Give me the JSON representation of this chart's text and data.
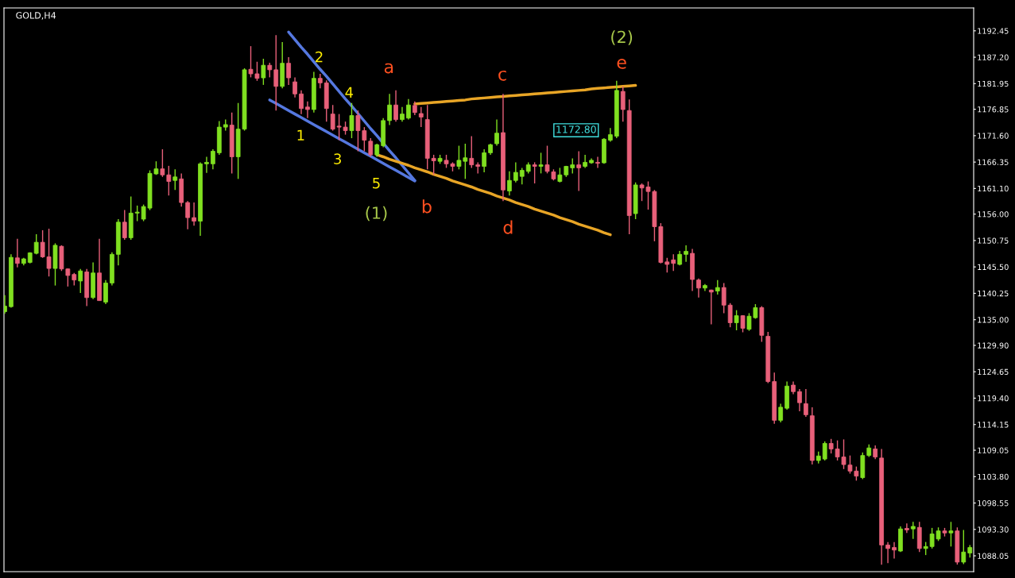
{
  "chart_data": {
    "type": "candlestick",
    "title": "GOLD,H4",
    "categories": [
      null,
      null,
      null,
      null,
      null,
      null,
      null,
      null,
      null,
      null,
      null,
      null,
      null,
      null,
      null,
      null,
      null,
      null,
      null,
      null,
      null,
      null,
      null,
      null,
      null,
      null,
      null,
      null,
      null,
      null,
      null,
      null,
      null,
      null,
      null,
      null,
      null,
      null,
      null,
      null,
      null,
      null,
      null,
      null,
      null,
      null,
      null,
      null,
      null,
      null,
      null,
      null,
      null,
      null,
      null,
      null,
      null,
      null,
      null,
      null,
      null,
      null,
      null,
      null,
      null,
      null,
      null,
      null,
      null,
      null,
      null,
      null,
      null,
      null,
      null,
      null,
      null,
      null,
      null,
      null,
      null,
      null,
      null,
      null,
      null,
      null,
      null,
      null,
      null,
      null,
      null,
      null,
      null,
      null,
      null,
      null,
      null,
      null,
      null,
      null,
      null,
      null,
      null,
      null,
      null,
      null,
      null,
      null,
      null,
      null,
      null,
      null,
      null,
      null,
      null,
      null,
      null,
      null,
      null,
      null,
      null,
      null,
      null,
      null,
      null,
      null,
      null,
      null,
      null,
      null,
      null,
      null,
      null,
      null,
      null,
      null,
      null,
      null,
      null,
      null,
      null,
      null,
      null,
      null,
      null,
      null,
      null,
      null,
      null,
      null,
      null,
      null,
      null,
      null
    ],
    "series": [
      {
        "colors": [
          "#80e020",
          "#80e020",
          "#e8607a",
          "#80e020",
          "#80e020",
          "#80e020",
          "#e8607a",
          "#e8607a",
          "#80e020",
          "#e8607a",
          "#e8607a",
          "#e8607a",
          "#80e020",
          "#e8607a",
          "#80e020",
          "#e8607a",
          "#80e020",
          "#80e020",
          "#80e020",
          "#e8607a",
          "#80e020",
          "#80e020",
          "#80e020",
          "#80e020",
          "#80e020",
          "#e8607a",
          "#e8607a",
          "#80e020",
          "#e8607a",
          "#e8607a",
          "#e8607a",
          "#80e020",
          "#80e020",
          "#80e020",
          "#80e020",
          "#80e020",
          "#e8607a",
          "#80e020",
          "#80e020",
          "#e8607a",
          "#e8607a",
          "#80e020",
          "#e8607a",
          "#e8607a",
          "#80e020",
          "#e8607a",
          "#e8607a",
          "#e8607a",
          "#e8607a",
          "#80e020",
          "#e8607a",
          "#e8607a",
          "#e8607a",
          "#e8607a",
          "#e8607a",
          "#80e020",
          "#e8607a",
          "#e8607a",
          "#e8607a",
          "#80e020",
          "#80e020",
          "#80e020",
          "#e8607a",
          "#80e020",
          "#80e020",
          "#e8607a",
          "#e8607a",
          "#e8607a",
          "#e8607a",
          "#80e020",
          "#e8607a",
          "#e8607a",
          "#80e020",
          "#80e020",
          "#e8607a",
          "#e8607a",
          "#80e020",
          "#80e020",
          "#80e020",
          "#e8607a",
          "#80e020",
          "#80e020",
          "#80e020",
          "#80e020",
          "#e8607a",
          "#80e020",
          "#e8607a",
          "#e8607a",
          "#80e020",
          "#80e020",
          "#80e020",
          "#e8607a",
          "#80e020",
          "#80e020",
          "#e8607a",
          "#80e020",
          "#80e020",
          "#80e020",
          "#e8607a",
          "#e8607a",
          "#80e020",
          "#e8607a",
          "#e8607a",
          "#e8607a",
          "#e8607a",
          "#e8607a",
          "#e8607a",
          "#80e020",
          "#80e020",
          "#e8607a",
          "#e8607a",
          "#80e020",
          "#e8607a",
          "#80e020",
          "#e8607a",
          "#e8607a",
          "#80e020",
          "#e8607a",
          "#80e020",
          "#80e020",
          "#e8607a",
          "#e8607a",
          "#e8607a",
          "#80e020",
          "#80e020",
          "#e8607a",
          "#e8607a",
          "#e8607a",
          "#e8607a",
          "#80e020",
          "#80e020",
          "#e8607a",
          "#e8607a",
          "#e8607a",
          "#e8607a",
          "#e8607a",
          "#80e020",
          "#80e020",
          "#e8607a",
          "#e8607a",
          "#e8607a",
          "#e8607a",
          "#80e020",
          "#e8607a",
          "#80e020",
          "#e8607a",
          "#80e020",
          "#80e020",
          "#80e020",
          "#e8607a",
          "#80e020",
          "#e8607a",
          "#80e020",
          "#80e020"
        ],
        "ohlc": [
          [
            1136.6,
            1139.9,
            1136.2,
            1137.7
          ],
          [
            1137.6,
            1148.0,
            1137.4,
            1147.4
          ],
          [
            1147.3,
            1151.1,
            1145.4,
            1146.2
          ],
          [
            1146.2,
            1147.3,
            1145.8,
            1147.1
          ],
          [
            1146.4,
            1148.4,
            1146.2,
            1148.3
          ],
          [
            1148.2,
            1152.0,
            1148.0,
            1150.4
          ],
          [
            1150.4,
            1152.8,
            1147.3,
            1147.5
          ],
          [
            1147.5,
            1153.1,
            1143.6,
            1145.2
          ],
          [
            1145.2,
            1150.2,
            1141.8,
            1149.8
          ],
          [
            1149.6,
            1149.8,
            1144.7,
            1145.1
          ],
          [
            1145.1,
            1145.2,
            1141.6,
            1143.8
          ],
          [
            1144.0,
            1144.3,
            1141.8,
            1142.9
          ],
          [
            1142.7,
            1145.1,
            1140.3,
            1144.7
          ],
          [
            1144.5,
            1145.1,
            1137.7,
            1139.4
          ],
          [
            1139.4,
            1146.4,
            1139.1,
            1144.3
          ],
          [
            1144.3,
            1151.1,
            1138.8,
            1138.8
          ],
          [
            1138.5,
            1142.9,
            1138.1,
            1142.3
          ],
          [
            1142.3,
            1148.4,
            1141.8,
            1148.0
          ],
          [
            1148.0,
            1155.0,
            1145.8,
            1154.4
          ],
          [
            1154.4,
            1156.8,
            1150.9,
            1151.3
          ],
          [
            1151.3,
            1159.5,
            1150.9,
            1156.2
          ],
          [
            1156.2,
            1157.7,
            1154.6,
            1156.4
          ],
          [
            1155.0,
            1157.9,
            1154.6,
            1157.5
          ],
          [
            1157.2,
            1164.7,
            1156.8,
            1164.1
          ],
          [
            1164.0,
            1166.5,
            1163.8,
            1165.0
          ],
          [
            1165.0,
            1168.9,
            1163.4,
            1163.8
          ],
          [
            1163.8,
            1165.6,
            1159.7,
            1162.5
          ],
          [
            1162.7,
            1164.9,
            1160.8,
            1163.4
          ],
          [
            1163.0,
            1164.1,
            1157.5,
            1158.3
          ],
          [
            1158.3,
            1158.6,
            1153.0,
            1155.3
          ],
          [
            1155.3,
            1158.3,
            1153.7,
            1154.6
          ],
          [
            1154.6,
            1166.3,
            1151.7,
            1166.0
          ],
          [
            1166.0,
            1167.4,
            1164.2,
            1166.3
          ],
          [
            1166.0,
            1168.9,
            1164.9,
            1168.5
          ],
          [
            1168.2,
            1174.5,
            1167.8,
            1173.3
          ],
          [
            1173.3,
            1174.8,
            1172.6,
            1173.8
          ],
          [
            1173.7,
            1176.2,
            1164.1,
            1167.4
          ],
          [
            1167.4,
            1178.1,
            1163.0,
            1172.9
          ],
          [
            1172.9,
            1185.0,
            1172.6,
            1184.7
          ],
          [
            1184.8,
            1189.4,
            1183.2,
            1183.9
          ],
          [
            1183.9,
            1186.3,
            1182.5,
            1183.0
          ],
          [
            1183.1,
            1186.9,
            1181.7,
            1185.6
          ],
          [
            1185.6,
            1186.1,
            1183.2,
            1184.7
          ],
          [
            1184.7,
            1191.6,
            1176.6,
            1181.4
          ],
          [
            1181.4,
            1190.2,
            1181.0,
            1186.0
          ],
          [
            1186.0,
            1187.2,
            1181.7,
            1183.1
          ],
          [
            1182.3,
            1183.2,
            1179.2,
            1179.9
          ],
          [
            1179.9,
            1180.6,
            1175.9,
            1177.0
          ],
          [
            1177.3,
            1178.4,
            1175.1,
            1176.8
          ],
          [
            1176.8,
            1184.3,
            1176.2,
            1183.0
          ],
          [
            1183.0,
            1183.9,
            1181.0,
            1182.1
          ],
          [
            1182.1,
            1182.6,
            1174.4,
            1177.0
          ],
          [
            1175.9,
            1177.7,
            1172.6,
            1172.9
          ],
          [
            1173.5,
            1175.9,
            1170.7,
            1173.3
          ],
          [
            1173.3,
            1174.4,
            1171.8,
            1172.6
          ],
          [
            1172.6,
            1178.1,
            1171.1,
            1175.6
          ],
          [
            1175.6,
            1176.6,
            1168.5,
            1172.6
          ],
          [
            1172.6,
            1173.3,
            1168.5,
            1170.7
          ],
          [
            1170.5,
            1171.1,
            1167.4,
            1167.8
          ],
          [
            1167.8,
            1170.0,
            1167.4,
            1169.8
          ],
          [
            1169.6,
            1175.1,
            1169.3,
            1174.6
          ],
          [
            1174.6,
            1179.9,
            1173.7,
            1177.7
          ],
          [
            1177.7,
            1180.6,
            1174.4,
            1174.8
          ],
          [
            1174.8,
            1177.3,
            1174.4,
            1175.9
          ],
          [
            1175.1,
            1178.9,
            1174.8,
            1177.7
          ],
          [
            1177.6,
            1178.4,
            1175.7,
            1176.2
          ],
          [
            1176.0,
            1177.3,
            1173.3,
            1175.3
          ],
          [
            1174.8,
            1177.7,
            1164.9,
            1167.1
          ],
          [
            1167.1,
            1167.8,
            1163.8,
            1166.6
          ],
          [
            1166.5,
            1167.8,
            1166.0,
            1167.1
          ],
          [
            1166.7,
            1167.8,
            1165.2,
            1166.0
          ],
          [
            1166.0,
            1166.3,
            1164.5,
            1165.5
          ],
          [
            1165.5,
            1169.6,
            1164.9,
            1166.7
          ],
          [
            1166.5,
            1170.0,
            1163.0,
            1167.2
          ],
          [
            1167.1,
            1171.5,
            1165.2,
            1165.8
          ],
          [
            1165.8,
            1166.3,
            1164.1,
            1165.5
          ],
          [
            1165.5,
            1168.9,
            1164.3,
            1168.2
          ],
          [
            1168.2,
            1170.0,
            1167.8,
            1169.8
          ],
          [
            1170.0,
            1174.8,
            1169.6,
            1172.1
          ],
          [
            1172.2,
            1179.9,
            1158.6,
            1160.8
          ],
          [
            1160.6,
            1164.5,
            1159.7,
            1162.7
          ],
          [
            1162.7,
            1166.3,
            1162.3,
            1164.3
          ],
          [
            1163.5,
            1165.2,
            1161.9,
            1164.7
          ],
          [
            1164.5,
            1166.3,
            1164.1,
            1165.8
          ],
          [
            1165.8,
            1166.3,
            1162.1,
            1165.5
          ],
          [
            1165.5,
            1168.2,
            1164.1,
            1165.8
          ],
          [
            1165.8,
            1169.6,
            1164.1,
            1164.5
          ],
          [
            1164.4,
            1164.9,
            1162.7,
            1163.0
          ],
          [
            1162.5,
            1165.2,
            1162.3,
            1163.8
          ],
          [
            1163.8,
            1165.6,
            1163.4,
            1165.5
          ],
          [
            1165.2,
            1167.1,
            1164.1,
            1165.8
          ],
          [
            1165.8,
            1168.5,
            1160.6,
            1165.2
          ],
          [
            1165.5,
            1167.8,
            1165.2,
            1166.3
          ],
          [
            1166.2,
            1167.1,
            1166.0,
            1166.7
          ],
          [
            1166.3,
            1167.4,
            1165.2,
            1166.1
          ],
          [
            1166.2,
            1171.1,
            1166.0,
            1170.9
          ],
          [
            1170.7,
            1173.1,
            1170.4,
            1171.8
          ],
          [
            1171.5,
            1182.5,
            1171.1,
            1180.6
          ],
          [
            1180.4,
            1181.4,
            1174.4,
            1176.8
          ],
          [
            1176.6,
            1178.8,
            1152.0,
            1155.7
          ],
          [
            1156.1,
            1162.3,
            1155.0,
            1161.8
          ],
          [
            1161.8,
            1162.1,
            1158.6,
            1161.2
          ],
          [
            1161.4,
            1162.5,
            1156.9,
            1160.5
          ],
          [
            1160.5,
            1160.8,
            1150.6,
            1153.5
          ],
          [
            1153.5,
            1154.2,
            1146.2,
            1146.4
          ],
          [
            1146.5,
            1147.3,
            1144.4,
            1146.0
          ],
          [
            1146.9,
            1148.0,
            1144.7,
            1146.2
          ],
          [
            1146.0,
            1148.7,
            1145.8,
            1148.0
          ],
          [
            1148.0,
            1149.8,
            1146.5,
            1148.6
          ],
          [
            1148.2,
            1149.1,
            1140.7,
            1143.0
          ],
          [
            1142.9,
            1143.2,
            1139.4,
            1141.3
          ],
          [
            1141.3,
            1142.1,
            1140.7,
            1141.8
          ],
          [
            1140.9,
            1141.0,
            1134.1,
            1140.5
          ],
          [
            1140.7,
            1142.9,
            1140.0,
            1141.4
          ],
          [
            1141.4,
            1142.3,
            1136.3,
            1137.9
          ],
          [
            1137.9,
            1138.3,
            1133.5,
            1134.4
          ],
          [
            1134.4,
            1136.9,
            1132.9,
            1135.8
          ],
          [
            1135.8,
            1135.9,
            1132.5,
            1133.3
          ],
          [
            1133.1,
            1136.3,
            1132.8,
            1135.7
          ],
          [
            1135.4,
            1138.1,
            1135.2,
            1137.4
          ],
          [
            1137.4,
            1137.7,
            1130.6,
            1131.9
          ],
          [
            1131.7,
            1132.6,
            1122.4,
            1122.7
          ],
          [
            1122.7,
            1124.5,
            1114.3,
            1115.0
          ],
          [
            1115.0,
            1118.3,
            1114.6,
            1117.6
          ],
          [
            1117.4,
            1122.7,
            1117.1,
            1121.8
          ],
          [
            1122.0,
            1122.7,
            1120.2,
            1120.7
          ],
          [
            1120.7,
            1121.2,
            1116.8,
            1118.5
          ],
          [
            1118.3,
            1121.2,
            1115.7,
            1116.1
          ],
          [
            1115.9,
            1117.6,
            1106.2,
            1107.0
          ],
          [
            1107.0,
            1108.8,
            1106.4,
            1107.9
          ],
          [
            1107.3,
            1110.8,
            1107.0,
            1110.4
          ],
          [
            1110.4,
            1111.3,
            1108.4,
            1109.3
          ],
          [
            1109.3,
            1111.0,
            1107.0,
            1107.7
          ],
          [
            1107.7,
            1111.2,
            1105.3,
            1106.2
          ],
          [
            1106.1,
            1108.0,
            1104.4,
            1104.9
          ],
          [
            1104.9,
            1105.8,
            1103.0,
            1103.9
          ],
          [
            1103.6,
            1108.6,
            1103.3,
            1108.0
          ],
          [
            1108.0,
            1110.2,
            1107.7,
            1109.5
          ],
          [
            1109.3,
            1110.0,
            1107.3,
            1107.7
          ],
          [
            1107.5,
            1109.3,
            1086.3,
            1090.2
          ],
          [
            1090.2,
            1090.8,
            1086.6,
            1089.5
          ],
          [
            1089.7,
            1090.8,
            1087.5,
            1089.2
          ],
          [
            1089.0,
            1093.9,
            1088.8,
            1093.4
          ],
          [
            1093.5,
            1094.5,
            1092.6,
            1093.2
          ],
          [
            1093.4,
            1094.8,
            1091.4,
            1093.9
          ],
          [
            1093.7,
            1094.8,
            1088.8,
            1089.5
          ],
          [
            1089.5,
            1090.8,
            1088.2,
            1089.9
          ],
          [
            1089.9,
            1093.6,
            1089.5,
            1092.4
          ],
          [
            1091.4,
            1093.7,
            1091.0,
            1093.0
          ],
          [
            1093.0,
            1093.6,
            1091.9,
            1092.6
          ],
          [
            1092.6,
            1094.8,
            1089.9,
            1093.0
          ],
          [
            1093.0,
            1093.7,
            1086.3,
            1086.8
          ],
          [
            1086.8,
            1093.2,
            1086.4,
            1088.8
          ],
          [
            1088.6,
            1090.2,
            1087.7,
            1089.7
          ]
        ]
      },
      {
        "type": "line",
        "color": "#5578e0",
        "values": [
          null,
          null,
          null,
          null,
          null,
          null,
          null,
          null,
          null,
          null,
          null,
          null,
          null,
          null,
          null,
          null,
          null,
          null,
          null,
          null,
          null,
          null,
          null,
          null,
          null,
          null,
          null,
          null,
          null,
          null,
          null,
          null,
          null,
          null,
          null,
          null,
          null,
          null,
          null,
          null,
          null,
          null,
          null,
          null,
          null,
          1192.2,
          1190.7,
          1189.2,
          1187.8,
          1186.3,
          1184.8,
          1183.4,
          1181.9,
          1180.4,
          1178.9,
          1177.5,
          1176.0,
          1174.5,
          1173.0,
          1171.6,
          1170.1,
          1168.6,
          1167.2,
          1165.7,
          1164.2,
          1162.7,
          null,
          null,
          null,
          null,
          null,
          null,
          null,
          null,
          null,
          null,
          null,
          null,
          null,
          null,
          null,
          null,
          null,
          null,
          null,
          null,
          null,
          null,
          null,
          null,
          null,
          null,
          null,
          null,
          null,
          null,
          null,
          null,
          null,
          null,
          null,
          null,
          null,
          null,
          null,
          null,
          null,
          null,
          null,
          null,
          null,
          null,
          null,
          null,
          null,
          null,
          null,
          null,
          null,
          null,
          null,
          null,
          null,
          null,
          null,
          null,
          null,
          null,
          null,
          null,
          null,
          null,
          null,
          null,
          null,
          null,
          null,
          null,
          null,
          null,
          null,
          null,
          null,
          null,
          null,
          null,
          null,
          null,
          null,
          null,
          null,
          null,
          null,
          null
        ]
      },
      {
        "type": "line",
        "color": "#5578e0",
        "values": [
          null,
          null,
          null,
          null,
          null,
          null,
          null,
          null,
          null,
          null,
          null,
          null,
          null,
          null,
          null,
          null,
          null,
          null,
          null,
          null,
          null,
          null,
          null,
          null,
          null,
          null,
          null,
          null,
          null,
          null,
          null,
          null,
          null,
          null,
          null,
          null,
          null,
          null,
          null,
          null,
          null,
          null,
          1178.7,
          1178.0,
          1177.3,
          1176.6,
          1175.9,
          1175.2,
          1174.5,
          1173.8,
          1173.1,
          1172.4,
          1171.7,
          1171.0,
          1170.3,
          1169.6,
          1168.9,
          1168.2,
          1167.5,
          1166.8,
          1166.1,
          1165.4,
          1164.7,
          1164.0,
          1163.3,
          1162.6,
          null,
          null,
          null,
          null,
          null,
          null,
          null,
          null,
          null,
          null,
          null,
          null,
          null,
          null,
          null,
          null,
          null,
          null,
          null,
          null,
          null,
          null,
          null,
          null,
          null,
          null,
          null,
          null,
          null,
          null,
          null,
          null,
          null,
          null,
          null,
          null,
          null,
          null,
          null,
          null,
          null,
          null,
          null,
          null,
          null,
          null,
          null,
          null,
          null,
          null,
          null,
          null,
          null,
          null,
          null,
          null,
          null,
          null,
          null,
          null,
          null,
          null,
          null,
          null,
          null,
          null,
          null,
          null,
          null,
          null,
          null,
          null,
          null,
          null,
          null,
          null,
          null,
          null,
          null,
          null,
          null,
          null,
          null,
          null,
          null,
          null,
          null,
          null
        ]
      },
      {
        "type": "line",
        "color": "#e8a526",
        "values": [
          null,
          null,
          null,
          null,
          null,
          null,
          null,
          null,
          null,
          null,
          null,
          null,
          null,
          null,
          null,
          null,
          null,
          null,
          null,
          null,
          null,
          null,
          null,
          null,
          null,
          null,
          null,
          null,
          null,
          null,
          null,
          null,
          null,
          null,
          null,
          null,
          null,
          null,
          null,
          null,
          null,
          null,
          null,
          null,
          null,
          null,
          null,
          null,
          null,
          null,
          null,
          null,
          null,
          null,
          null,
          null,
          null,
          null,
          null,
          1167.8,
          1167.4,
          1166.9,
          1166.5,
          1166.1,
          1165.7,
          1165.2,
          1164.8,
          1164.4,
          1163.9,
          1163.5,
          1163.1,
          1162.6,
          1162.2,
          1161.8,
          1161.4,
          1160.9,
          1160.5,
          1160.1,
          1159.6,
          1159.2,
          1158.8,
          1158.3,
          1157.9,
          1157.5,
          1157.0,
          1156.6,
          1156.2,
          1155.8,
          1155.3,
          1154.9,
          1154.5,
          1154.0,
          1153.6,
          1153.2,
          1152.8,
          1152.3,
          1151.9,
          null,
          null,
          null,
          null,
          null,
          null,
          null,
          null,
          null,
          null,
          null,
          null,
          null,
          null,
          null,
          null,
          null,
          null,
          null,
          null,
          null,
          null,
          null,
          null,
          null,
          null,
          null,
          null,
          null,
          null,
          null,
          null,
          null,
          null,
          null,
          null,
          null,
          null,
          null,
          null,
          null,
          null,
          null,
          null,
          null,
          null,
          null,
          null,
          null,
          null,
          null,
          null,
          null,
          null,
          null,
          null,
          null
        ]
      },
      {
        "type": "line",
        "color": "#e8a526",
        "values": [
          null,
          null,
          null,
          null,
          null,
          null,
          null,
          null,
          null,
          null,
          null,
          null,
          null,
          null,
          null,
          null,
          null,
          null,
          null,
          null,
          null,
          null,
          null,
          null,
          null,
          null,
          null,
          null,
          null,
          null,
          null,
          null,
          null,
          null,
          null,
          null,
          null,
          null,
          null,
          null,
          null,
          null,
          null,
          null,
          null,
          null,
          null,
          null,
          null,
          null,
          null,
          null,
          null,
          null,
          null,
          null,
          null,
          null,
          null,
          null,
          null,
          null,
          null,
          null,
          null,
          1177.9,
          1178.0,
          1178.1,
          1178.2,
          1178.3,
          1178.4,
          1178.5,
          1178.6,
          1178.7,
          1178.9,
          1179.0,
          1179.1,
          1179.2,
          1179.3,
          1179.4,
          1179.5,
          1179.6,
          1179.7,
          1179.8,
          1179.9,
          1180.0,
          1180.1,
          1180.2,
          1180.3,
          1180.4,
          1180.5,
          1180.6,
          1180.7,
          1180.9,
          1181.0,
          1181.1,
          1181.2,
          1181.3,
          1181.4,
          1181.5,
          1181.6,
          null,
          null,
          null,
          null,
          null,
          null,
          null,
          null,
          null,
          null,
          null,
          null,
          null,
          null,
          null,
          null,
          null,
          null,
          null,
          null,
          null,
          null,
          null,
          null,
          null,
          null,
          null,
          null,
          null,
          null,
          null,
          null,
          null,
          null,
          null,
          null,
          null,
          null,
          null,
          null,
          null,
          null,
          null,
          null,
          null,
          null,
          null,
          null,
          null,
          null,
          null,
          null,
          null
        ]
      }
    ],
    "annotations": [
      "2",
      "4",
      "1",
      "3",
      "5",
      "(1)",
      "(2)",
      "a",
      "b",
      "c",
      "d",
      "e",
      "1172.80"
    ],
    "ylim": [
      1084.9,
      1197.0
    ],
    "yticks": [
      1192.45,
      {
        "value": 1187.2,
        "label": "1187.20"
      },
      1181.95,
      1176.85,
      {
        "value": 1171.6,
        "label": "1171.60"
      },
      1166.35,
      {
        "value": 1161.1,
        "label": "1161.10"
      },
      {
        "value": 1156,
        "label": "1156.00"
      },
      1150.75,
      {
        "value": 1145.5,
        "label": "1145.50"
      },
      1140.25,
      {
        "value": 1135,
        "label": "1135.00"
      },
      {
        "value": 1129.9,
        "label": "1129.90"
      },
      1124.65,
      {
        "value": 1119.4,
        "label": "1119.40"
      },
      1114.15,
      1109.05,
      {
        "value": 1103.8,
        "label": "1103.80"
      },
      1098.55,
      {
        "value": 1093.3,
        "label": "1093.30"
      },
      1088.05
    ],
    "tick_labels": "y",
    "grid": false,
    "legend": false
  }
}
